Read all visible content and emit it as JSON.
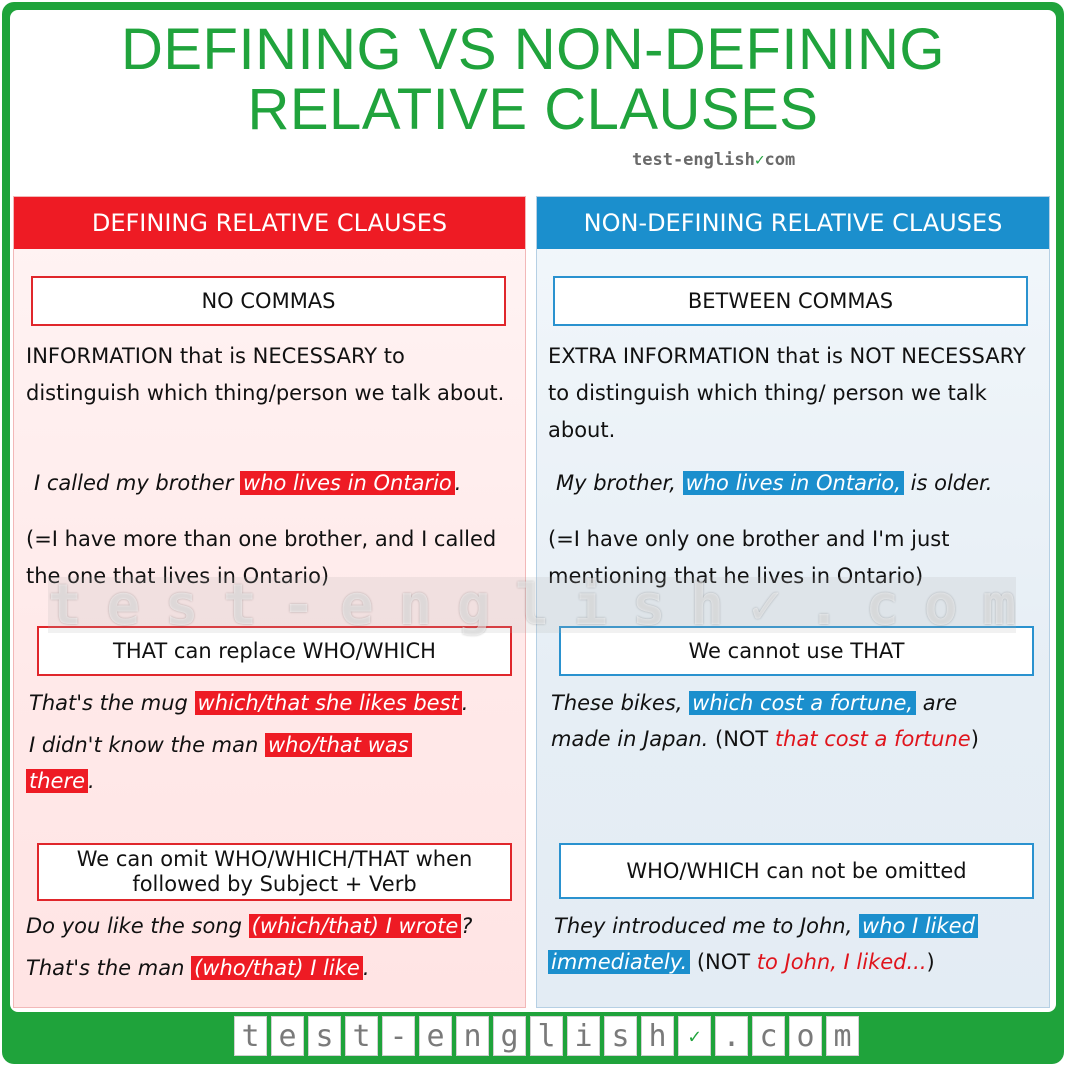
{
  "title": {
    "line1": "DEFINING VS NON-DEFINING",
    "line2": "RELATIVE CLAUSES"
  },
  "brand_small": {
    "prefix": "test-english",
    "suffix": "com",
    "icon": "check-circle-icon"
  },
  "watermark": [
    "t",
    "e",
    "s",
    "t",
    "-",
    "e",
    "n",
    "g",
    "l",
    "i",
    "s",
    "h",
    "✓",
    ".",
    "c",
    "o",
    "m"
  ],
  "footer_brand": [
    "t",
    "e",
    "s",
    "t",
    "-",
    "e",
    "n",
    "g",
    "l",
    "i",
    "s",
    "h",
    "✓",
    ".",
    "c",
    "o",
    "m"
  ],
  "colors": {
    "brand_green": "#20a33c",
    "defining_red": "#ee1b24",
    "nondefining_blue": "#1b8fcd"
  },
  "defining": {
    "header": "DEFINING RELATIVE CLAUSES",
    "rule1": "NO COMMAS",
    "desc": "INFORMATION that is NECESSARY to distinguish which thing/person we talk about.",
    "ex1": {
      "pre": "I called my brother ",
      "hl": "who lives in Ontario",
      "post": "."
    },
    "note": "(=I have more than one brother, and I called the one that lives in Ontario)",
    "rule2": "THAT can replace WHO/WHICH",
    "ex2": {
      "pre": "That's the mug ",
      "hl": "which/that she likes best",
      "post": "."
    },
    "ex3": {
      "pre": "I didn't know the man ",
      "hl1": "who/that was",
      "hl2": "there",
      "post": "."
    },
    "rule3": "We can omit WHO/WHICH/THAT when followed by Subject + Verb",
    "ex4": {
      "pre": "Do you like the song ",
      "hl": "(which/that) I wrote",
      "post": "?"
    },
    "ex5": {
      "pre": "That's the man ",
      "hl": "(who/that) I like",
      "post": "."
    }
  },
  "nondefining": {
    "header": "NON-DEFINING RELATIVE CLAUSES",
    "rule1": "BETWEEN COMMAS",
    "desc": "EXTRA INFORMATION that is NOT NECESSARY to distinguish which thing/ person we talk about.",
    "ex1": {
      "pre": "My brother, ",
      "hl": "who lives in Ontario,",
      "post": " is older."
    },
    "note": "(=I have only one brother and I'm just mentioning that he lives in Ontario)",
    "rule2": "We cannot use THAT",
    "ex2": {
      "pre": "These bikes, ",
      "hl": "which cost a fortune,",
      "post": " are"
    },
    "ex3": {
      "pre": "made in Japan.",
      "not_open": " (NOT ",
      "red": "that cost a fortune",
      "not_close": ")"
    },
    "rule3": "WHO/WHICH can not be omitted",
    "ex4": {
      "pre": "They introduced me to John, ",
      "hl": "who I liked"
    },
    "ex5": {
      "hl": "immediately.",
      "not_open": " (NOT ",
      "red": "to John, I liked...",
      "not_close": ")"
    }
  }
}
